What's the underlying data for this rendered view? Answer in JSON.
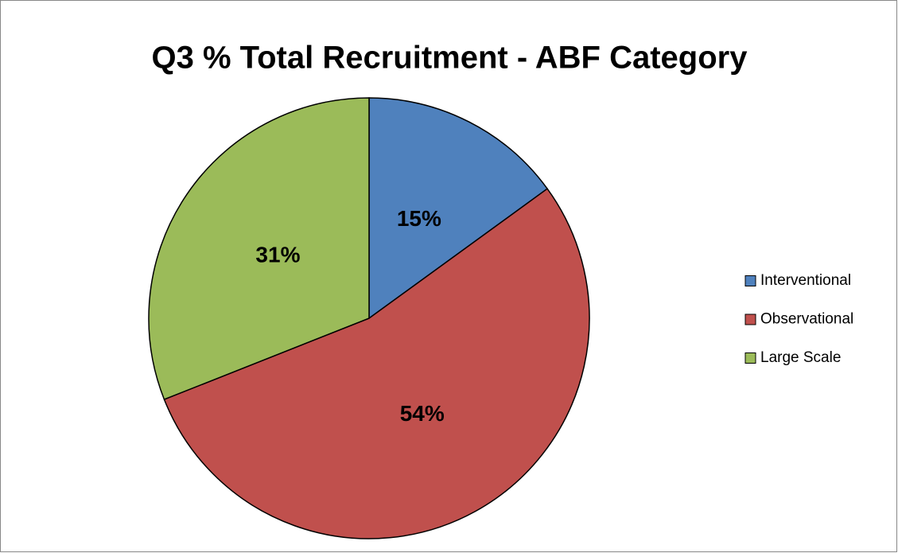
{
  "chart_data": {
    "type": "pie",
    "title": "Q3 % Total Recruitment - ABF Category",
    "categories": [
      "Interventional",
      "Observational",
      "Large Scale"
    ],
    "values": [
      15,
      54,
      31
    ],
    "value_labels": [
      "15%",
      "54%",
      "31%"
    ],
    "colors": [
      "#4f81bd",
      "#c0504d",
      "#9bbb59"
    ],
    "legend": "right"
  }
}
